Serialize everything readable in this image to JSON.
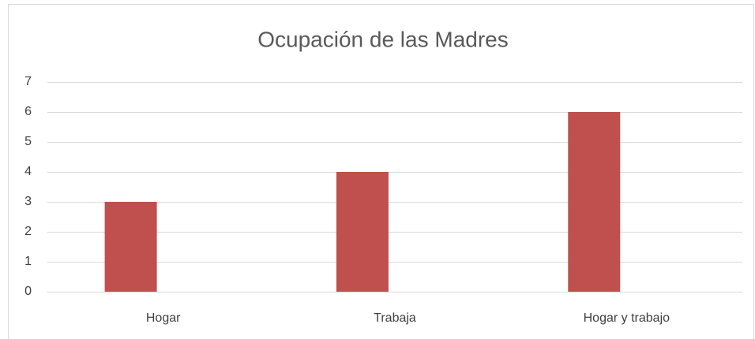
{
  "chart_data": {
    "type": "bar",
    "title": "Ocupación de las Madres",
    "categories": [
      "Hogar",
      "Trabaja",
      "Hogar y trabajo"
    ],
    "values": [
      3,
      4,
      6
    ],
    "color": "#c0504d",
    "ylim": [
      0,
      7
    ],
    "yticks": [
      0,
      1,
      2,
      3,
      4,
      5,
      6,
      7
    ],
    "grid": true
  }
}
